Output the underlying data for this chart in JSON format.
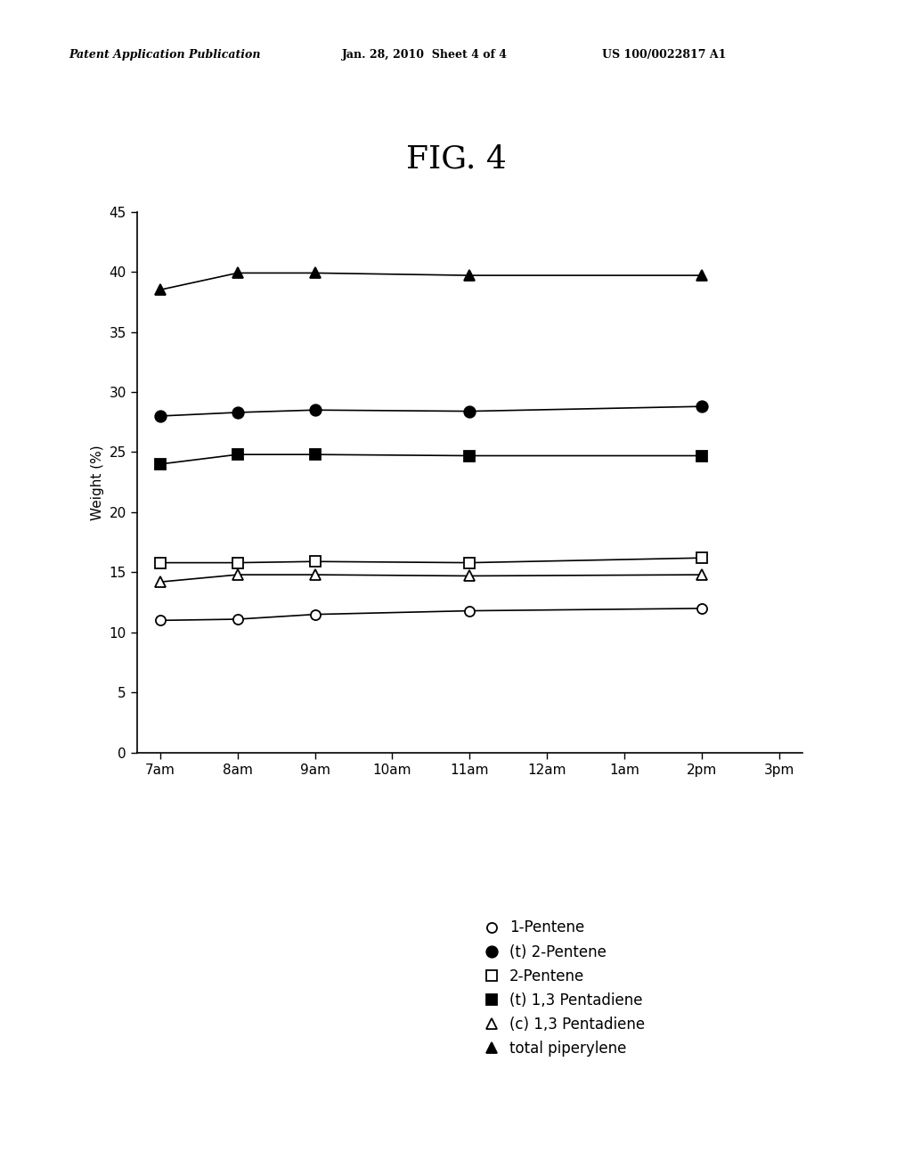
{
  "fig_title": "FIG. 4",
  "ylabel": "Weight (%)",
  "xlim": [
    -0.3,
    8.3
  ],
  "ylim": [
    0,
    45
  ],
  "yticks": [
    0,
    5,
    10,
    15,
    20,
    25,
    30,
    35,
    40,
    45
  ],
  "xtick_labels": [
    "7am",
    "8am",
    "9am",
    "10am",
    "11am",
    "12am",
    "1am",
    "2pm",
    "3pm"
  ],
  "x_data_indices": [
    0,
    1,
    2,
    4,
    7
  ],
  "series": [
    {
      "name": "1-Pentene",
      "marker": "o",
      "filled": false,
      "markersize": 8,
      "linewidth": 1.2,
      "y": [
        11.0,
        11.1,
        11.5,
        11.8,
        12.0
      ]
    },
    {
      "name": "(t) 2-Pentene",
      "marker": "o",
      "filled": true,
      "markersize": 9,
      "linewidth": 1.2,
      "y": [
        28.0,
        28.3,
        28.5,
        28.4,
        28.8
      ]
    },
    {
      "name": "2-Pentene",
      "marker": "s",
      "filled": false,
      "markersize": 8,
      "linewidth": 1.2,
      "y": [
        15.8,
        15.8,
        15.9,
        15.8,
        16.2
      ]
    },
    {
      "name": "(t) 1,3 Pentadiene",
      "marker": "s",
      "filled": true,
      "markersize": 8,
      "linewidth": 1.2,
      "y": [
        24.0,
        24.8,
        24.8,
        24.7,
        24.7
      ]
    },
    {
      "name": "(c) 1,3 Pentadiene",
      "marker": "^",
      "filled": false,
      "markersize": 8,
      "linewidth": 1.2,
      "y": [
        14.2,
        14.8,
        14.8,
        14.7,
        14.8
      ]
    },
    {
      "name": "total piperylene",
      "marker": "^",
      "filled": true,
      "markersize": 9,
      "linewidth": 1.2,
      "y": [
        38.5,
        39.9,
        39.9,
        39.7,
        39.7
      ]
    }
  ],
  "background_color": "#ffffff",
  "fig_title_fontsize": 26,
  "axis_label_fontsize": 11,
  "tick_fontsize": 11,
  "legend_fontsize": 12,
  "header_left": "Patent Application Publication",
  "header_mid": "Jan. 28, 2010  Sheet 4 of 4",
  "header_right": "US 100/0022817 A1",
  "header_fontsize": 9
}
